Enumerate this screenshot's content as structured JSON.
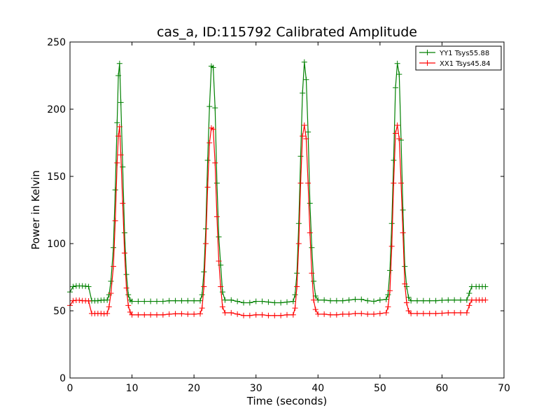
{
  "colors": {
    "yy1": "#008000",
    "xx1": "#ff0000",
    "frame": "#000000",
    "background": "#ffffff"
  },
  "chart_data": {
    "type": "line",
    "title": "cas_a, ID:115792 Calibrated Amplitude",
    "xlabel": "Time (seconds)",
    "ylabel": "Power in Kelvin",
    "xlim": [
      0,
      70
    ],
    "ylim": [
      0,
      250
    ],
    "xticks": [
      "0",
      "10",
      "20",
      "30",
      "40",
      "50",
      "60",
      "70"
    ],
    "yticks": [
      "0",
      "50",
      "100",
      "150",
      "200",
      "250"
    ],
    "grid": false,
    "legend_position": "top-right",
    "marker": "+",
    "series": [
      {
        "name": "YY1 Tsys55.88",
        "color": "#008000",
        "points": [
          [
            0,
            64
          ],
          [
            0.5,
            68
          ],
          [
            1,
            68.5
          ],
          [
            1.5,
            68.5
          ],
          [
            2,
            68.5
          ],
          [
            2.5,
            68.3
          ],
          [
            3,
            68
          ],
          [
            3.5,
            57.5
          ],
          [
            4,
            57.5
          ],
          [
            4.5,
            57.5
          ],
          [
            5,
            57.8
          ],
          [
            5.5,
            58
          ],
          [
            6,
            58
          ],
          [
            6.3,
            62
          ],
          [
            6.6,
            72
          ],
          [
            7,
            97
          ],
          [
            7.3,
            140
          ],
          [
            7.6,
            190
          ],
          [
            7.8,
            225
          ],
          [
            8,
            234
          ],
          [
            8.2,
            205
          ],
          [
            8.5,
            157
          ],
          [
            8.8,
            108
          ],
          [
            9.1,
            77
          ],
          [
            9.4,
            62
          ],
          [
            9.7,
            58
          ],
          [
            10,
            57
          ],
          [
            11,
            57
          ],
          [
            12,
            57
          ],
          [
            13,
            57
          ],
          [
            14,
            57
          ],
          [
            15,
            57
          ],
          [
            16,
            57.5
          ],
          [
            17,
            57.5
          ],
          [
            18,
            57.5
          ],
          [
            19,
            57.5
          ],
          [
            20,
            57.5
          ],
          [
            21,
            57.5
          ],
          [
            21.3,
            62
          ],
          [
            21.6,
            79
          ],
          [
            21.9,
            111
          ],
          [
            22.2,
            162
          ],
          [
            22.5,
            202
          ],
          [
            22.8,
            232
          ],
          [
            23.1,
            231
          ],
          [
            23.4,
            201
          ],
          [
            23.7,
            145
          ],
          [
            24,
            105
          ],
          [
            24.3,
            84
          ],
          [
            24.6,
            64
          ],
          [
            25,
            58
          ],
          [
            26,
            58
          ],
          [
            27,
            57
          ],
          [
            28,
            56
          ],
          [
            29,
            56
          ],
          [
            30,
            57
          ],
          [
            31,
            57
          ],
          [
            32,
            56.5
          ],
          [
            33,
            56
          ],
          [
            34,
            56
          ],
          [
            35,
            56.5
          ],
          [
            36,
            57
          ],
          [
            36.3,
            62
          ],
          [
            36.6,
            78
          ],
          [
            36.9,
            115
          ],
          [
            37.2,
            165
          ],
          [
            37.5,
            212
          ],
          [
            37.8,
            235
          ],
          [
            38.1,
            222
          ],
          [
            38.4,
            183
          ],
          [
            38.7,
            130
          ],
          [
            39,
            97
          ],
          [
            39.3,
            72
          ],
          [
            39.6,
            61
          ],
          [
            40,
            58
          ],
          [
            41,
            58
          ],
          [
            42,
            57.5
          ],
          [
            43,
            57.5
          ],
          [
            44,
            57.5
          ],
          [
            45,
            58
          ],
          [
            46,
            58.5
          ],
          [
            47,
            58.5
          ],
          [
            48,
            57.5
          ],
          [
            49,
            57
          ],
          [
            50,
            58
          ],
          [
            51,
            58.5
          ],
          [
            51.3,
            62
          ],
          [
            51.6,
            80
          ],
          [
            51.9,
            115
          ],
          [
            52.2,
            162
          ],
          [
            52.5,
            216
          ],
          [
            52.8,
            234
          ],
          [
            53.1,
            226
          ],
          [
            53.4,
            177
          ],
          [
            53.7,
            125
          ],
          [
            54,
            83
          ],
          [
            54.3,
            68
          ],
          [
            54.6,
            60
          ],
          [
            55,
            57.5
          ],
          [
            56,
            57.5
          ],
          [
            57,
            57.5
          ],
          [
            58,
            57.5
          ],
          [
            59,
            57.5
          ],
          [
            60,
            57.8
          ],
          [
            61,
            58
          ],
          [
            62,
            58
          ],
          [
            63,
            58
          ],
          [
            64,
            58
          ],
          [
            64.4,
            63
          ],
          [
            64.8,
            68
          ],
          [
            65.5,
            68
          ],
          [
            66,
            68
          ],
          [
            66.5,
            68
          ],
          [
            67,
            68
          ]
        ]
      },
      {
        "name": "XX1 Tsys45.84",
        "color": "#ff0000",
        "points": [
          [
            0,
            54
          ],
          [
            0.5,
            57.5
          ],
          [
            1,
            57.8
          ],
          [
            1.5,
            57.8
          ],
          [
            2,
            57.5
          ],
          [
            2.5,
            57.5
          ],
          [
            3,
            57.3
          ],
          [
            3.5,
            48
          ],
          [
            4,
            48
          ],
          [
            4.5,
            48
          ],
          [
            5,
            48
          ],
          [
            5.5,
            47.8
          ],
          [
            6,
            48
          ],
          [
            6.3,
            53
          ],
          [
            6.6,
            63
          ],
          [
            7,
            83
          ],
          [
            7.3,
            117
          ],
          [
            7.6,
            160
          ],
          [
            7.8,
            180
          ],
          [
            8,
            187
          ],
          [
            8.2,
            166
          ],
          [
            8.5,
            130
          ],
          [
            8.8,
            93
          ],
          [
            9.1,
            67
          ],
          [
            9.4,
            54
          ],
          [
            9.7,
            49
          ],
          [
            10,
            47
          ],
          [
            11,
            47
          ],
          [
            12,
            47
          ],
          [
            13,
            47
          ],
          [
            14,
            47
          ],
          [
            15,
            47
          ],
          [
            16,
            47.5
          ],
          [
            17,
            47.8
          ],
          [
            18,
            47.8
          ],
          [
            19,
            47.5
          ],
          [
            20,
            47.5
          ],
          [
            21,
            47.8
          ],
          [
            21.3,
            52
          ],
          [
            21.6,
            68
          ],
          [
            21.9,
            100
          ],
          [
            22.2,
            142
          ],
          [
            22.5,
            175
          ],
          [
            22.8,
            186
          ],
          [
            23.1,
            185
          ],
          [
            23.4,
            160
          ],
          [
            23.7,
            120
          ],
          [
            24,
            87
          ],
          [
            24.3,
            68
          ],
          [
            24.6,
            53
          ],
          [
            25,
            48.5
          ],
          [
            26,
            48.5
          ],
          [
            27,
            47.5
          ],
          [
            28,
            46.5
          ],
          [
            29,
            46.5
          ],
          [
            30,
            47
          ],
          [
            31,
            47
          ],
          [
            32,
            46.5
          ],
          [
            33,
            46.5
          ],
          [
            34,
            46.5
          ],
          [
            35,
            47
          ],
          [
            36,
            47
          ],
          [
            36.3,
            52
          ],
          [
            36.6,
            68
          ],
          [
            36.9,
            100
          ],
          [
            37.2,
            145
          ],
          [
            37.5,
            180
          ],
          [
            37.8,
            188
          ],
          [
            38.1,
            178
          ],
          [
            38.4,
            145
          ],
          [
            38.7,
            108
          ],
          [
            39,
            78
          ],
          [
            39.3,
            58
          ],
          [
            39.6,
            51
          ],
          [
            40,
            47.5
          ],
          [
            41,
            47.5
          ],
          [
            42,
            47
          ],
          [
            43,
            47
          ],
          [
            44,
            47.5
          ],
          [
            45,
            47.5
          ],
          [
            46,
            48
          ],
          [
            47,
            48
          ],
          [
            48,
            47.5
          ],
          [
            49,
            47.5
          ],
          [
            50,
            48
          ],
          [
            51,
            48.5
          ],
          [
            51.3,
            53
          ],
          [
            51.6,
            65
          ],
          [
            51.9,
            98
          ],
          [
            52.2,
            145
          ],
          [
            52.5,
            182
          ],
          [
            52.8,
            188
          ],
          [
            53.1,
            178
          ],
          [
            53.4,
            145
          ],
          [
            53.7,
            108
          ],
          [
            54,
            70
          ],
          [
            54.3,
            56
          ],
          [
            54.6,
            50
          ],
          [
            55,
            48
          ],
          [
            56,
            48
          ],
          [
            57,
            48
          ],
          [
            58,
            48
          ],
          [
            59,
            48
          ],
          [
            60,
            48.2
          ],
          [
            61,
            48.5
          ],
          [
            62,
            48.5
          ],
          [
            63,
            48.5
          ],
          [
            64,
            48.5
          ],
          [
            64.4,
            54
          ],
          [
            64.8,
            58
          ],
          [
            65.5,
            58
          ],
          [
            66,
            58
          ],
          [
            66.5,
            58
          ],
          [
            67,
            58
          ]
        ]
      }
    ]
  }
}
